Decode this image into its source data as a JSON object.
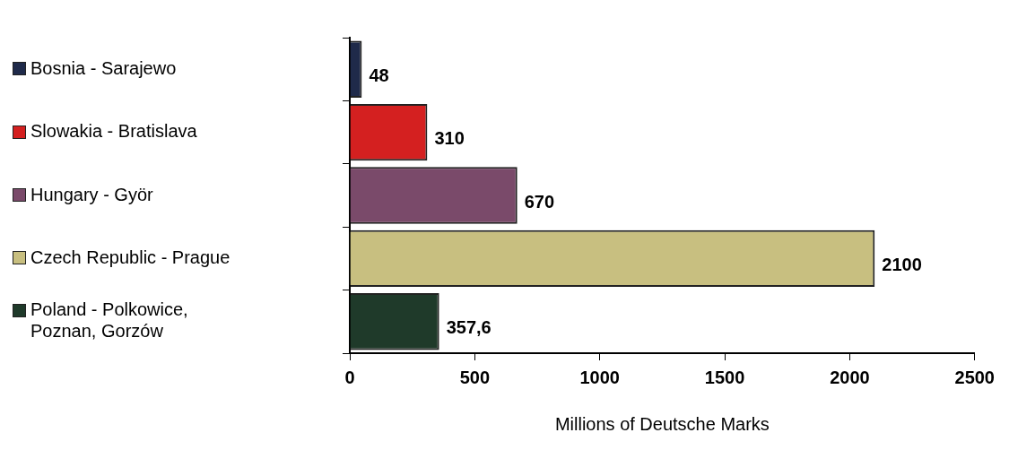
{
  "chart_data": {
    "type": "bar",
    "orientation": "horizontal",
    "xlabel": "Millions of Deutsche Marks",
    "categories": [
      "Bosnia - Sarajewo",
      "Slowakia - Bratislava",
      "Hungary - Györ",
      "Czech Republic - Prague",
      "Poland - Polkowice, Poznan, Gorzów"
    ],
    "values": [
      48,
      310,
      670,
      2100,
      357.6
    ],
    "colors": [
      "#1f2a4a",
      "#d42020",
      "#7a4a6a",
      "#c8bf80",
      "#1f3a2a"
    ],
    "value_labels": [
      "48",
      "310",
      "670",
      "2100",
      "357,6"
    ],
    "xlim": [
      0,
      2500
    ],
    "xticks": [
      0,
      500,
      1000,
      1500,
      2000,
      2500
    ],
    "grid": false
  }
}
